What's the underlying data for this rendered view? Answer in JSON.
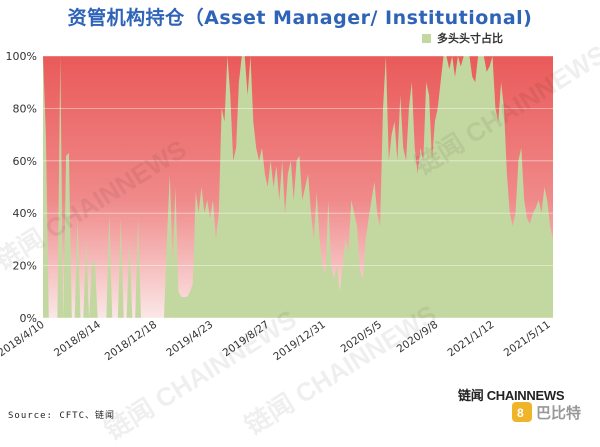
{
  "title": "资管机构持仓（Asset Manager/ Institutional)",
  "source": "Source: CFTC、链闻",
  "brand": {
    "prefix": "链闻",
    "name": "CHAINNEWS",
    "logo_text": "巴比特",
    "logo_sub": "8btc"
  },
  "watermark": "链闻 CHAINNEWS",
  "colors": {
    "long": "#c3d7a0",
    "short_top": "#ea5a5a",
    "short_bottom": "#fbe7e7",
    "title": "#2e63b8"
  },
  "chart_data": {
    "type": "area",
    "title": "资管机构持仓（Asset Manager/ Institutional)",
    "xlabel": "",
    "ylabel": "",
    "ylim": [
      0,
      100
    ],
    "yticks": [
      "0%",
      "20%",
      "40%",
      "60%",
      "80%",
      "100%"
    ],
    "xticks": [
      "2018/4/10",
      "2018/8/14",
      "2018/12/18",
      "2019/4/23",
      "2019/8/27",
      "2019/12/31",
      "2020/5/5",
      "2020/9/8",
      "2021/1/12",
      "2021/5/11"
    ],
    "grid": true,
    "legend_position": "top-right",
    "series": [
      {
        "name": "多头头寸占比",
        "values": [
          100,
          70,
          0,
          0,
          0,
          0,
          100,
          0,
          62,
          63,
          0,
          0,
          38,
          0,
          0,
          30,
          0,
          22,
          21,
          0,
          0,
          0,
          0,
          40,
          0,
          0,
          0,
          38,
          0,
          0,
          30,
          0,
          0,
          38,
          0,
          0,
          0,
          0,
          0,
          0,
          0,
          0,
          0,
          30,
          55,
          20,
          50,
          10,
          8,
          8,
          8,
          10,
          13,
          48,
          40,
          50,
          40,
          45,
          38,
          45,
          30,
          40,
          80,
          75,
          100,
          85,
          60,
          65,
          90,
          100,
          100,
          85,
          100,
          75,
          65,
          60,
          65,
          55,
          50,
          60,
          50,
          58,
          45,
          60,
          40,
          55,
          60,
          45,
          60,
          62,
          45,
          50,
          55,
          40,
          30,
          48,
          30,
          20,
          17,
          45,
          20,
          15,
          20,
          10,
          20,
          30,
          25,
          45,
          40,
          35,
          18,
          15,
          30,
          38,
          45,
          52,
          40,
          35,
          80,
          100,
          60,
          70,
          75,
          60,
          85,
          65,
          60,
          80,
          90,
          65,
          55,
          65,
          60,
          90,
          85,
          60,
          75,
          80,
          90,
          100,
          100,
          95,
          100,
          92,
          100,
          96,
          100,
          100,
          100,
          92,
          90,
          100,
          100,
          100,
          94,
          96,
          100,
          80,
          75,
          90,
          80,
          55,
          40,
          35,
          40,
          60,
          65,
          45,
          38,
          36,
          40,
          42,
          45,
          40,
          50,
          45,
          35,
          30
        ]
      }
    ]
  }
}
